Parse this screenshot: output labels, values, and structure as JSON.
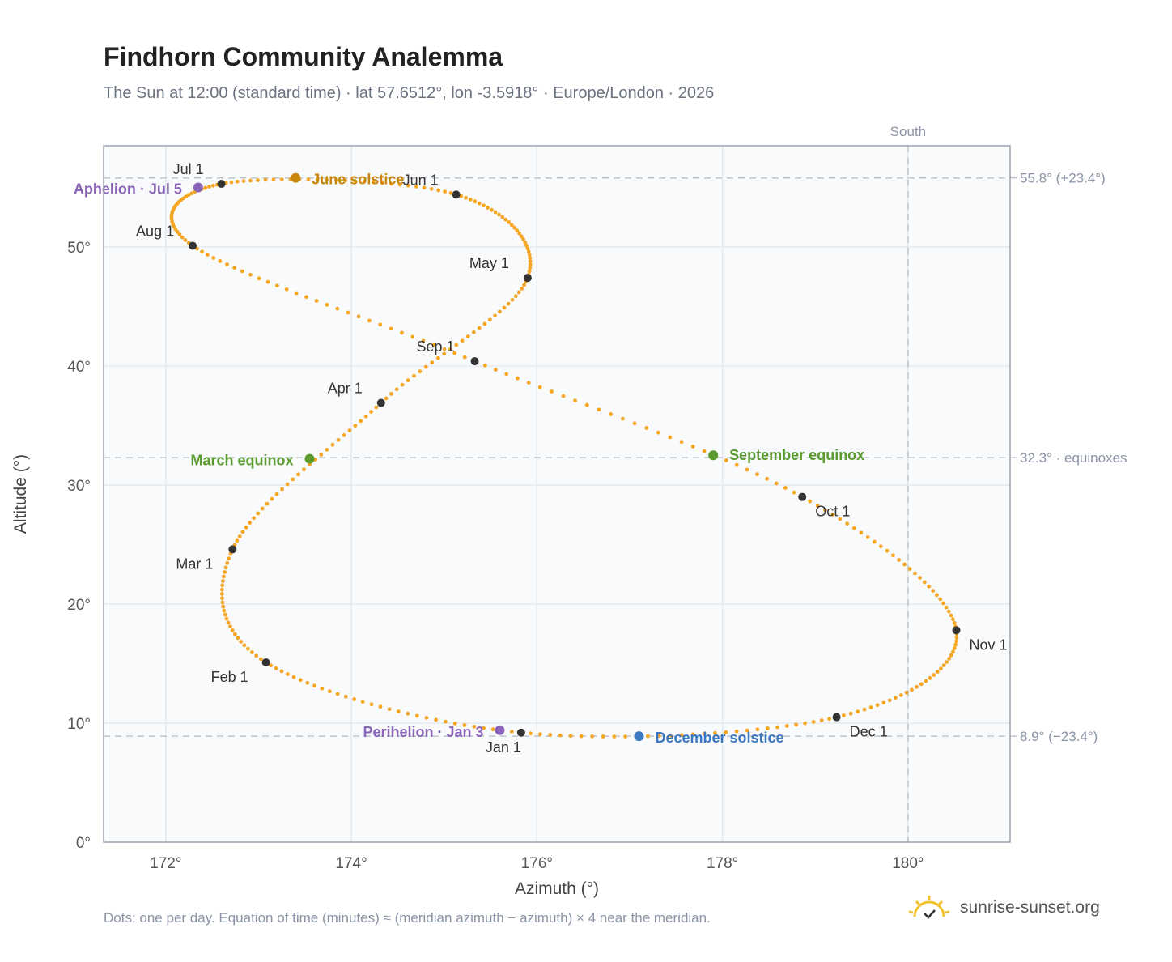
{
  "header": {
    "title": "Findhorn Community Analemma",
    "subtitle": "The Sun at 12:00 (standard time) · lat 57.6512°, lon -3.5918° · Europe/London · 2026"
  },
  "footer": {
    "note": "Dots: one per day. Equation of time (minutes) ≈ (meridian azimuth − azimuth) × 4 near the meridian.",
    "brand": "sunrise-sunset.org",
    "brand_icon": "sun-logo-icon"
  },
  "colors": {
    "curve": "#f5a623",
    "month_marker": "#333333",
    "solstice_june": "#c8860a",
    "solstice_december": "#3a78c2",
    "equinox": "#5a9a2e",
    "apsides": "#8a64b8",
    "reference_line": "#c0c5cc",
    "plot_background": "#f8fafc",
    "grid": "#e5e9ee"
  },
  "chart_data": {
    "type": "scatter",
    "xlabel": "Azimuth (°)",
    "ylabel": "Altitude (°)",
    "xlim": [
      171.33,
      181.1
    ],
    "ylim": [
      0,
      58.5
    ],
    "xticks": [
      172,
      174,
      176,
      178,
      180
    ],
    "xtick_labels": [
      "172°",
      "174°",
      "176°",
      "178°",
      "180°"
    ],
    "yticks": [
      0,
      10,
      20,
      30,
      40,
      50
    ],
    "ytick_labels": [
      "0°",
      "10°",
      "20°",
      "30°",
      "40°",
      "50°"
    ],
    "grid": true,
    "meridian": {
      "azimuth": 180,
      "label": "South"
    },
    "reference_lines": [
      {
        "altitude": 55.8,
        "label": "55.8° (+23.4°)"
      },
      {
        "altitude": 32.3,
        "label": "32.3° · equinoxes"
      },
      {
        "altitude": 8.9,
        "label": "8.9° (−23.4°)"
      }
    ],
    "month_points": [
      {
        "label": "Jan 1",
        "az": 175.83,
        "alt": 9.2
      },
      {
        "label": "Feb 1",
        "az": 173.08,
        "alt": 15.1
      },
      {
        "label": "Mar 1",
        "az": 172.72,
        "alt": 24.6
      },
      {
        "label": "Apr 1",
        "az": 174.32,
        "alt": 36.9
      },
      {
        "label": "May 1",
        "az": 175.9,
        "alt": 47.4
      },
      {
        "label": "Jun 1",
        "az": 175.13,
        "alt": 54.4
      },
      {
        "label": "Jul 1",
        "az": 172.6,
        "alt": 55.3
      },
      {
        "label": "Aug 1",
        "az": 172.29,
        "alt": 50.1
      },
      {
        "label": "Sep 1",
        "az": 175.33,
        "alt": 40.4
      },
      {
        "label": "Oct 1",
        "az": 178.86,
        "alt": 29.0
      },
      {
        "label": "Nov 1",
        "az": 180.52,
        "alt": 17.8
      },
      {
        "label": "Dec 1",
        "az": 179.23,
        "alt": 10.5
      }
    ],
    "events": [
      {
        "label": "June solstice",
        "az": 173.4,
        "alt": 55.8,
        "color_key": "solstice_june"
      },
      {
        "label": "December solstice",
        "az": 177.1,
        "alt": 8.9,
        "color_key": "solstice_december"
      },
      {
        "label": "March equinox",
        "az": 173.55,
        "alt": 32.2,
        "color_key": "equinox"
      },
      {
        "label": "September equinox",
        "az": 177.9,
        "alt": 32.5,
        "color_key": "equinox"
      },
      {
        "label": "Aphelion · Jul 5",
        "az": 172.35,
        "alt": 55.0,
        "color_key": "apsides"
      },
      {
        "label": "Perihelion · Jan 3",
        "az": 175.6,
        "alt": 9.4,
        "color_key": "apsides"
      }
    ]
  }
}
